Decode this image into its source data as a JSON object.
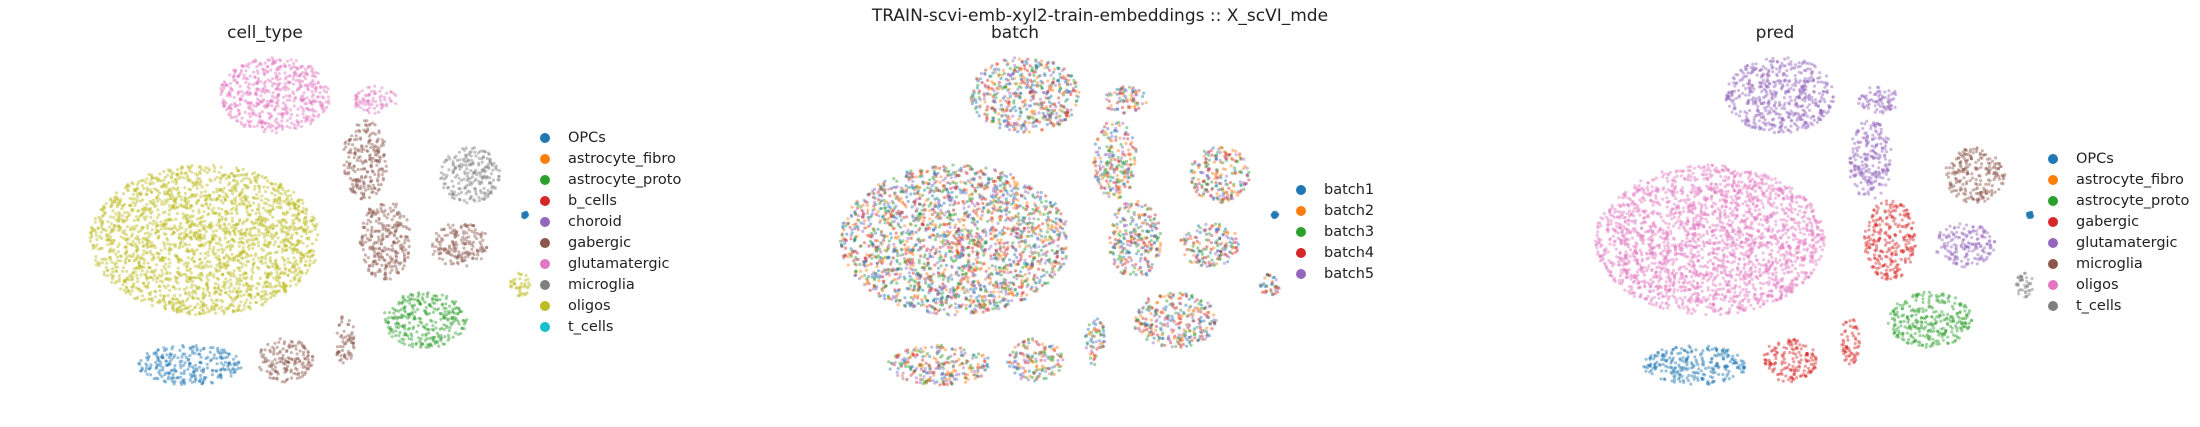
{
  "figure": {
    "suptitle": "TRAIN-scvi-emb-xyl2-train-embeddings :: X_scVI_mde"
  },
  "chart_data": [
    {
      "type": "scatter",
      "title": "cell_type",
      "legend_placement": "right",
      "series": [
        {
          "name": "OPCs",
          "color": "#1f77b4"
        },
        {
          "name": "astrocyte_fibro",
          "color": "#ff7f0e"
        },
        {
          "name": "astrocyte_proto",
          "color": "#2ca02c"
        },
        {
          "name": "b_cells",
          "color": "#d62728"
        },
        {
          "name": "choroid",
          "color": "#9467bd"
        },
        {
          "name": "gabergic",
          "color": "#8c564b"
        },
        {
          "name": "glutamatergic",
          "color": "#e377c2"
        },
        {
          "name": "microglia",
          "color": "#7f7f7f"
        },
        {
          "name": "oligos",
          "color": "#bcbd22"
        },
        {
          "name": "t_cells",
          "color": "#17becf"
        }
      ]
    },
    {
      "type": "scatter",
      "title": "batch",
      "legend_placement": "right",
      "series": [
        {
          "name": "batch1",
          "color": "#1f77b4"
        },
        {
          "name": "batch2",
          "color": "#ff7f0e"
        },
        {
          "name": "batch3",
          "color": "#2ca02c"
        },
        {
          "name": "batch4",
          "color": "#d62728"
        },
        {
          "name": "batch5",
          "color": "#9467bd"
        }
      ]
    },
    {
      "type": "scatter",
      "title": "pred",
      "legend_placement": "right",
      "series": [
        {
          "name": "OPCs",
          "color": "#1f77b4"
        },
        {
          "name": "astrocyte_fibro",
          "color": "#ff7f0e"
        },
        {
          "name": "astrocyte_proto",
          "color": "#2ca02c"
        },
        {
          "name": "gabergic",
          "color": "#d62728"
        },
        {
          "name": "glutamatergic",
          "color": "#9467bd"
        },
        {
          "name": "microglia",
          "color": "#8c564b"
        },
        {
          "name": "oligos",
          "color": "#e377c2"
        },
        {
          "name": "t_cells",
          "color": "#7f7f7f"
        }
      ]
    }
  ]
}
